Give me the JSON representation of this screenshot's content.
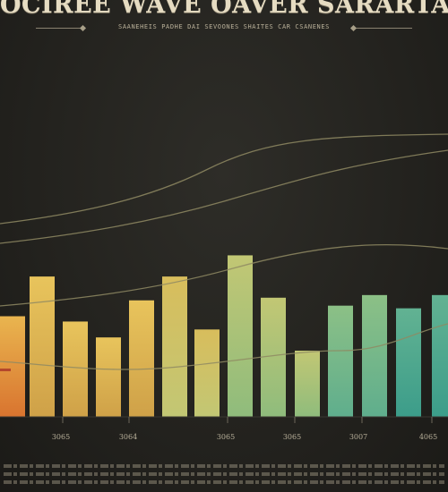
{
  "header": {
    "title": "OCIREE WAVE OAVER SARARTAMHER",
    "subtitle": "SAANEHEIS PADHE DAI SEVOONES SHAITES CAR CSANENES"
  },
  "chart_data": {
    "type": "bar",
    "x_tick_labels": [
      "3065",
      "3064",
      "3065",
      "3065",
      "3007",
      "4065"
    ],
    "values": [
      38,
      53,
      36,
      30,
      44,
      53,
      33,
      61,
      45,
      25,
      42,
      46,
      41,
      46
    ],
    "ylim": [
      0,
      100
    ],
    "grid": false,
    "legend": "none",
    "colors": {
      "bar_low": "#d9742f",
      "bar_warm": "#e8c45c",
      "bar_mid": "#c2c774",
      "bar_cool": "#5fae8d",
      "bar_teal": "#3c9d8a",
      "line": "#8f8a63"
    }
  }
}
